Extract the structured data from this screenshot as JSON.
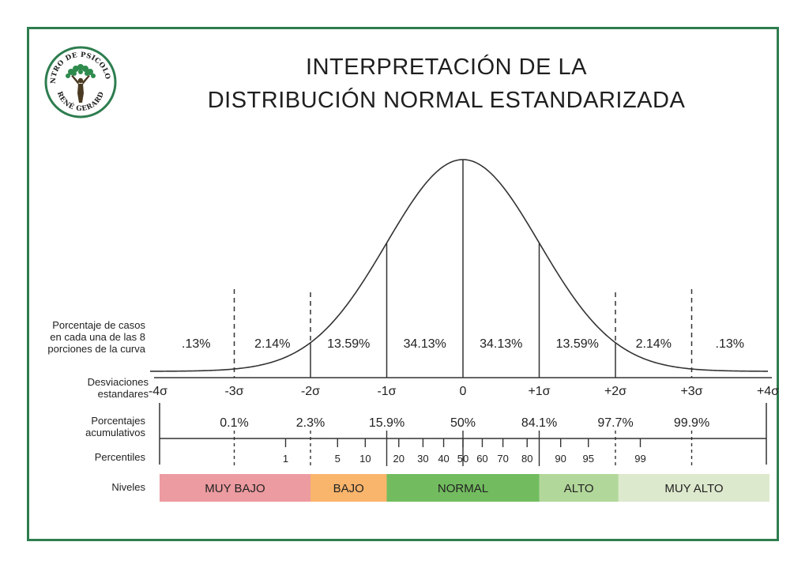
{
  "title": {
    "line1": "INTERPRETACIÓN DE LA",
    "line2": "DISTRIBUCIÓN NORMAL ESTANDARIZADA"
  },
  "logo": {
    "top_text": "CENTRO DE PSICOLOGÍA",
    "bottom_text": "RENÉ GERARD",
    "color": "#2e7d4f"
  },
  "row_labels": {
    "portion": "Porcentaje de casos en cada una de las 8 porciones de la curva",
    "portion_lines": [
      "Porcentaje de casos",
      "en cada una de las 8",
      "porciones de la curva"
    ],
    "sd_lines": [
      "Desviaciones",
      "estandares"
    ],
    "cumulative_lines": [
      "Porcentajes",
      "acumulativos"
    ],
    "percentiles": "Percentiles",
    "levels": "Niveles"
  },
  "chart_data": {
    "type": "area",
    "curve": "standard normal density",
    "x_range": [
      -4,
      4
    ],
    "sd_ticks": [
      "-4σ",
      "-3σ",
      "-2σ",
      "-1σ",
      "0",
      "+1σ",
      "+2σ",
      "+3σ",
      "+4σ"
    ],
    "sd_values": [
      -4,
      -3,
      -2,
      -1,
      0,
      1,
      2,
      3,
      4
    ],
    "portions": [
      {
        "label": ".13%",
        "from": -4,
        "to": -3
      },
      {
        "label": "2.14%",
        "from": -3,
        "to": -2
      },
      {
        "label": "13.59%",
        "from": -2,
        "to": -1
      },
      {
        "label": "34.13%",
        "from": -1,
        "to": 0
      },
      {
        "label": "34.13%",
        "from": 0,
        "to": 1
      },
      {
        "label": "13.59%",
        "from": 1,
        "to": 2
      },
      {
        "label": "2.14%",
        "from": 2,
        "to": 3
      },
      {
        "label": ".13%",
        "from": 3,
        "to": 4
      }
    ],
    "cumulative": [
      {
        "label": "0.1%",
        "at": -3
      },
      {
        "label": "2.3%",
        "at": -2
      },
      {
        "label": "15.9%",
        "at": -1
      },
      {
        "label": "50%",
        "at": 0
      },
      {
        "label": "84.1%",
        "at": 1
      },
      {
        "label": "97.7%",
        "at": 2
      },
      {
        "label": "99.9%",
        "at": 3
      }
    ],
    "percentiles": [
      1,
      5,
      10,
      20,
      30,
      40,
      50,
      60,
      70,
      80,
      90,
      95,
      99
    ],
    "levels": [
      {
        "label": "MUY BAJO",
        "from": -4,
        "to": -2,
        "color": "#ec9ba0"
      },
      {
        "label": "BAJO",
        "from": -2,
        "to": -1,
        "color": "#f9b56c"
      },
      {
        "label": "NORMAL",
        "from": -1,
        "to": 1,
        "color": "#72bc5f"
      },
      {
        "label": "ALTO",
        "from": 1,
        "to": 2.04,
        "color": "#b2d79a"
      },
      {
        "label": "MUY ALTO",
        "from": 2.04,
        "to": 4,
        "color": "#dde9cd"
      }
    ]
  }
}
